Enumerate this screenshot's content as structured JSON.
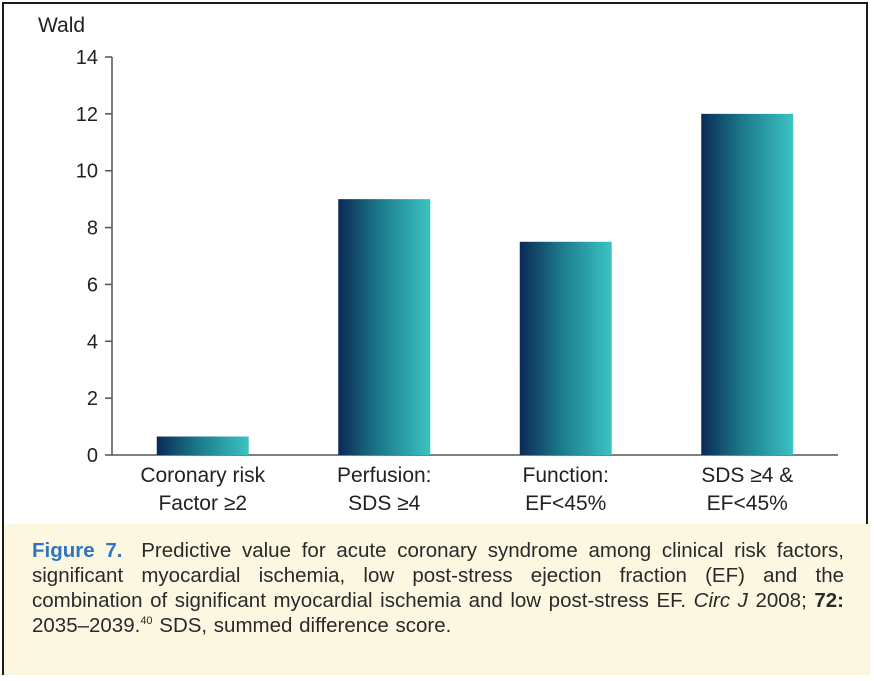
{
  "chart_data": {
    "type": "bar",
    "ylabel": "Wald",
    "ylim": [
      0,
      14
    ],
    "yticks": [
      "0",
      "2",
      "4",
      "6",
      "8",
      "10",
      "12",
      "14"
    ],
    "categories": [
      [
        "Coronary risk",
        "Factor ≥2"
      ],
      [
        "Perfusion:",
        "SDS ≥4"
      ],
      [
        "Function:",
        "EF<45%"
      ],
      [
        "SDS ≥4 &",
        "EF<45%"
      ]
    ],
    "values": [
      0.65,
      9.0,
      7.5,
      12.0
    ],
    "bar_gradient": [
      "#0b2a55",
      "#1b7a8c",
      "#3cc3c3"
    ],
    "grid": false
  },
  "caption": {
    "label": "Figure 7.",
    "text_main": "Predictive value for acute coronary syndrome among clinical risk factors, significant myocardial ischemia, low post-stress ejection fraction (EF) and the combination of significant myocardial ischemia and low post-stress EF.",
    "journal": "Circ J",
    "year": "2008;",
    "volume": "72:",
    "pages": "2035–2039.",
    "ref": "40",
    "tail": "SDS, summed difference score."
  }
}
